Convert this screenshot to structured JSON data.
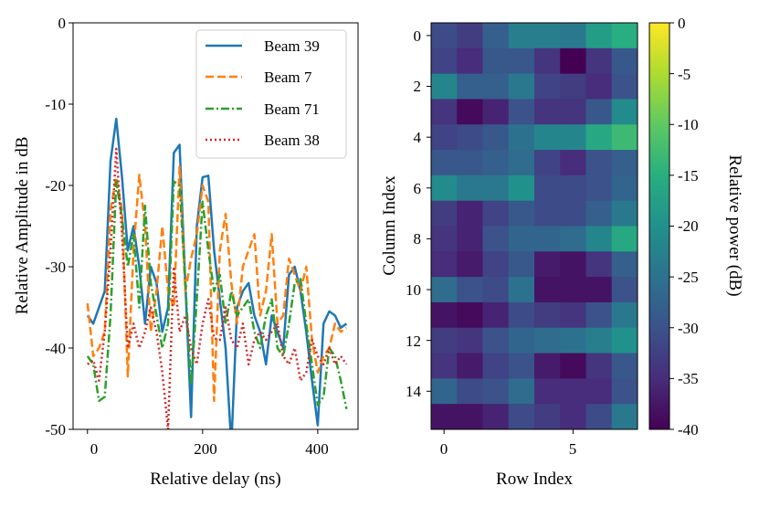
{
  "chart_data": [
    {
      "type": "line",
      "xlabel": "Relative delay (ns)",
      "ylabel": "Relative Amplitude in dB",
      "xlim": [
        -25,
        470
      ],
      "ylim": [
        -50,
        0
      ],
      "xticks": [
        0,
        200,
        400
      ],
      "yticks": [
        0,
        -10,
        -20,
        -30,
        -40,
        -50
      ],
      "xtick_labels": [
        "0",
        "200",
        "400"
      ],
      "ytick_labels": [
        "0",
        "-10",
        "-20",
        "-30",
        "-40",
        "-50"
      ],
      "legend_position": "top-right",
      "x": [
        0,
        10,
        20,
        30,
        40,
        50,
        60,
        70,
        80,
        90,
        100,
        110,
        120,
        130,
        140,
        150,
        160,
        170,
        180,
        190,
        200,
        210,
        220,
        230,
        240,
        250,
        260,
        270,
        280,
        290,
        300,
        310,
        320,
        330,
        340,
        350,
        360,
        370,
        380,
        390,
        400,
        410,
        420,
        430,
        440,
        450
      ],
      "series": [
        {
          "name": "Beam 39",
          "color": "#1f77b4",
          "dash": "solid",
          "values": [
            -36,
            -37,
            -35,
            -33,
            -17,
            -11.8,
            -19,
            -28,
            -25,
            -30,
            -37,
            -30,
            -32,
            -38,
            -35,
            -16,
            -15,
            -32,
            -48.5,
            -25,
            -19,
            -18.8,
            -28,
            -34,
            -40,
            -52,
            -35,
            -33,
            -32,
            -36,
            -38,
            -42,
            -36,
            -38,
            -40,
            -31,
            -30,
            -33,
            -38,
            -44,
            -49.5,
            -37,
            -35.5,
            -36,
            -37.5,
            -37
          ]
        },
        {
          "name": "Beam 7",
          "color": "#ff7f0e",
          "dash": "dashed",
          "values": [
            -34.5,
            -41,
            -40,
            -38,
            -23,
            -19,
            -23,
            -43.5,
            -28,
            -18.7,
            -25,
            -38,
            -33,
            -25,
            -33,
            -35,
            -17.7,
            -33,
            -29,
            -26,
            -20,
            -22,
            -46.5,
            -28,
            -23.5,
            -32,
            -37,
            -30,
            -28,
            -26,
            -36,
            -33,
            -26,
            -37,
            -36,
            -29,
            -31,
            -33,
            -30,
            -39,
            -43,
            -41,
            -40,
            -37,
            -38,
            -37.5
          ]
        },
        {
          "name": "Beam 71",
          "color": "#2ca02c",
          "dash": "dashdot",
          "values": [
            -41,
            -42,
            -46.5,
            -46,
            -36,
            -19.5,
            -24,
            -30,
            -26,
            -35,
            -22.5,
            -32,
            -36,
            -40,
            -37,
            -19.5,
            -20,
            -32,
            -44.5,
            -34,
            -22,
            -28,
            -33,
            -31,
            -37,
            -33,
            -36,
            -35,
            -34,
            -38,
            -40,
            -36,
            -34,
            -40,
            -41,
            -37,
            -32,
            -31.5,
            -37,
            -42,
            -47,
            -46,
            -40,
            -41,
            -44,
            -47.5
          ]
        },
        {
          "name": "Beam 38",
          "color": "#d62728",
          "dash": "dotted",
          "values": [
            -42,
            -41.5,
            -44,
            -38,
            -28,
            -15.5,
            -26,
            -40,
            -37,
            -40,
            -38,
            -35,
            -38,
            -43,
            -50,
            -30,
            -38,
            -36,
            -40,
            -42,
            -37,
            -34,
            -38.8,
            -39,
            -35,
            -39,
            -40,
            -37,
            -42,
            -39,
            -38,
            -39,
            -38,
            -37,
            -41,
            -42,
            -40,
            -44,
            -43,
            -39,
            -41,
            -42,
            -40,
            -42,
            -41,
            -42
          ]
        }
      ]
    },
    {
      "type": "heatmap",
      "xlabel": "Row Index",
      "ylabel": "Column Index",
      "xticks": [
        0,
        5
      ],
      "yticks": [
        0,
        2,
        4,
        6,
        8,
        10,
        12,
        14
      ],
      "xtick_labels": [
        "0",
        "5"
      ],
      "ytick_labels": [
        "0",
        "2",
        "4",
        "6",
        "8",
        "10",
        "12",
        "14"
      ],
      "colorbar": {
        "label": "Relative power (dB)",
        "range": [
          -40,
          0
        ],
        "ticks": [
          0,
          -5,
          -10,
          -15,
          -20,
          -25,
          -30,
          -35,
          -40
        ],
        "tick_labels": [
          "0",
          "-5",
          "-10",
          "-15",
          "-20",
          "-25",
          "-30",
          "-35",
          "-40"
        ],
        "colormap": "viridis"
      },
      "rows": 16,
      "cols": 8,
      "values": [
        [
          -31,
          -33,
          -28,
          -23,
          -23,
          -24,
          -18,
          -15
        ],
        [
          -32,
          -35,
          -29,
          -29,
          -34,
          -40,
          -34,
          -29
        ],
        [
          -22,
          -28,
          -28,
          -24,
          -32,
          -33,
          -35,
          -30
        ],
        [
          -34,
          -39,
          -36,
          -30,
          -34,
          -34,
          -29,
          -21
        ],
        [
          -32,
          -31,
          -29,
          -25,
          -22,
          -22,
          -16,
          -13
        ],
        [
          -29,
          -29,
          -28,
          -26,
          -32,
          -35,
          -30,
          -28
        ],
        [
          -21,
          -24,
          -24,
          -20,
          -31,
          -31,
          -30,
          -27
        ],
        [
          -33,
          -36,
          -32,
          -29,
          -31,
          -31,
          -28,
          -24
        ],
        [
          -34,
          -36,
          -30,
          -27,
          -27,
          -26,
          -22,
          -16
        ],
        [
          -35,
          -37,
          -32,
          -29,
          -37,
          -38,
          -34,
          -28
        ],
        [
          -26,
          -30,
          -31,
          -25,
          -38,
          -38,
          -38,
          -30
        ],
        [
          -38,
          -39,
          -36,
          -31,
          -33,
          -34,
          -30,
          -24
        ],
        [
          -33,
          -34,
          -30,
          -27,
          -26,
          -25,
          -23,
          -20
        ],
        [
          -34,
          -37,
          -32,
          -30,
          -37,
          -39,
          -34,
          -29
        ],
        [
          -27,
          -31,
          -30,
          -26,
          -35,
          -35,
          -35,
          -30
        ],
        [
          -38,
          -38,
          -36,
          -31,
          -33,
          -35,
          -31,
          -24
        ]
      ]
    }
  ]
}
